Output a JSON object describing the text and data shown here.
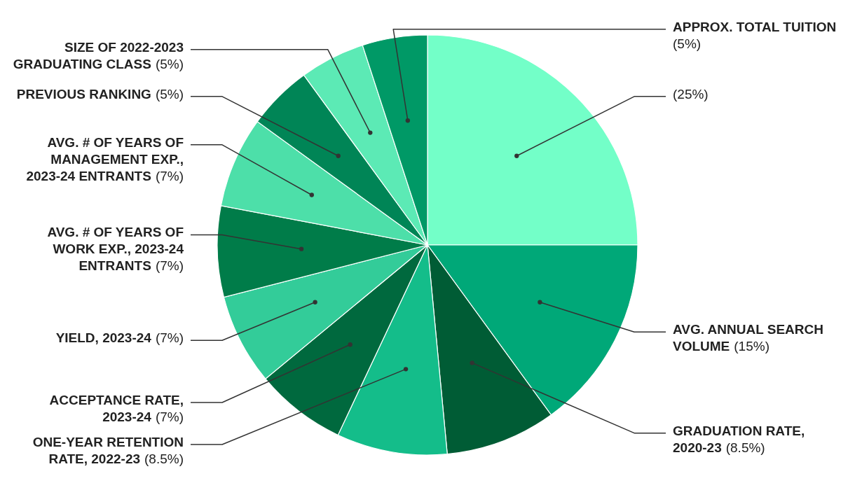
{
  "chart_data": {
    "type": "pie",
    "categories": [
      null,
      "AVG. ANNUAL SEARCH VOLUME",
      "GRADUATION RATE, 2020-23",
      "ONE-YEAR RETENTION RATE, 2022-23",
      "ACCEPTANCE RATE, 2023-24",
      "YIELD, 2023-24",
      "AVG. # OF YEARS OF WORK EXP., 2023-24 ENTRANTS",
      "AVG. # OF YEARS OF MANAGEMENT EXP., 2023-24 ENTRANTS",
      "PREVIOUS RANKING",
      "SIZE OF 2022-2023 GRADUATING CLASS",
      "APPROX. TOTAL TUITION"
    ],
    "values": [
      25,
      15,
      8.5,
      8.5,
      7,
      7,
      7,
      7,
      5,
      5,
      5
    ],
    "value_labels": [
      "(25%)",
      "(15%)",
      "(8.5%)",
      "(8.5%)",
      "(7%)",
      "(7%)",
      "(7%)",
      "(7%)",
      "(5%)",
      "(5%)",
      "(5%)"
    ],
    "colors": [
      "#73ffc8",
      "#00a878",
      "#005c35",
      "#14bd8a",
      "#00693e",
      "#33cc99",
      "#007c49",
      "#4ddfa9",
      "#008556",
      "#5ceab5",
      "#009966"
    ]
  }
}
